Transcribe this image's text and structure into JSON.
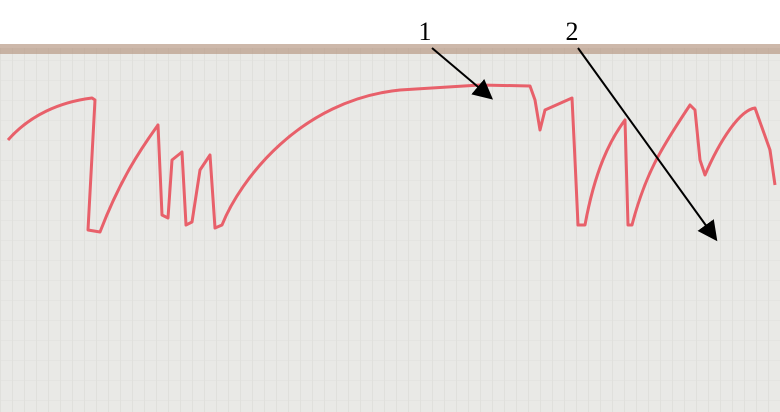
{
  "annotations": [
    "1",
    "2"
  ]
}
